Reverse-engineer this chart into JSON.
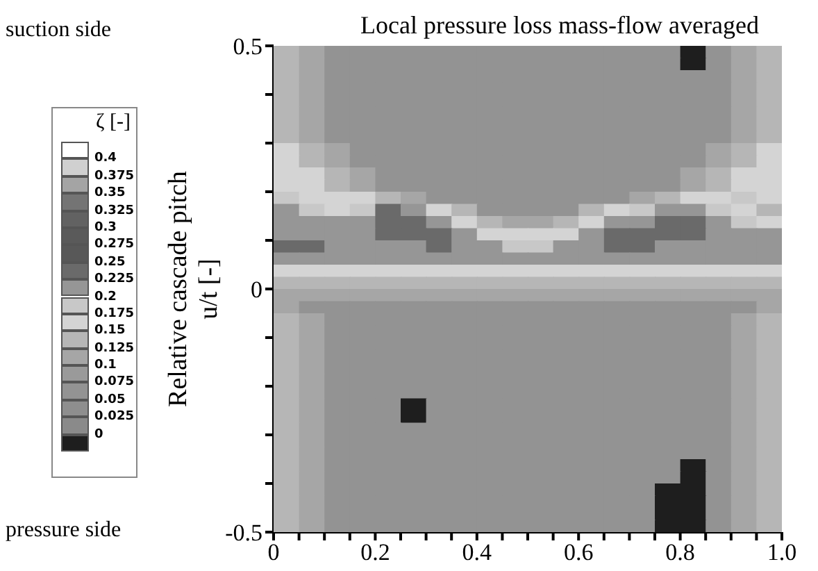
{
  "chart_data": {
    "type": "heatmap",
    "title": "Local pressure loss mass-flow averaged",
    "ylabel": "Relative cascade pitch u/t [-]",
    "clabel": "ζ [-]",
    "annotations": [
      "suction side",
      "pressure side"
    ],
    "xlim": [
      0,
      1
    ],
    "xticks": [
      0,
      {
        "value": 0.05,
        "label": null
      },
      {
        "value": 0.1,
        "label": null
      },
      {
        "value": 0.15,
        "label": null
      },
      0.2,
      {
        "value": 0.25,
        "label": null
      },
      {
        "value": 0.3,
        "label": null
      },
      {
        "value": 0.35,
        "label": null
      },
      0.4,
      {
        "value": 0.45,
        "label": null
      },
      {
        "value": 0.5,
        "label": null
      },
      {
        "value": 0.55,
        "label": null
      },
      0.6,
      {
        "value": 0.65,
        "label": null
      },
      {
        "value": 0.7,
        "label": null
      },
      {
        "value": 0.75,
        "label": null
      },
      0.8,
      {
        "value": 0.85,
        "label": null
      },
      {
        "value": 0.9,
        "label": null
      },
      {
        "value": 0.95,
        "label": null
      },
      {
        "value": 1,
        "label": "1.0"
      }
    ],
    "ylim": [
      -0.5,
      0.5
    ],
    "yticks": [
      -0.5,
      {
        "value": -0.4,
        "label": null
      },
      {
        "value": -0.3,
        "label": null
      },
      {
        "value": -0.2,
        "label": null
      },
      {
        "value": -0.1,
        "label": null
      },
      0,
      {
        "value": 0.1,
        "label": null
      },
      {
        "value": 0.2,
        "label": null
      },
      {
        "value": 0.3,
        "label": null
      },
      {
        "value": 0.4,
        "label": null
      },
      0.5
    ],
    "clim": [
      -0.025,
      0.425
    ],
    "cticks": [
      0,
      0.025,
      0.05,
      0.075,
      0.1,
      0.125,
      0.15,
      0.175,
      0.2,
      0.225,
      0.25,
      0.275,
      0.3,
      0.325,
      0.35,
      0.375,
      0.4
    ],
    "colors": [
      "#1e1e1e",
      "#8a8a8a",
      "#8e8e8e",
      "#939393",
      "#9a9a9a",
      "#a6a6a6",
      "#b6b6b6",
      "#d4d4d4",
      "#c8c8c8",
      "#969696",
      "#6a6a6a",
      "#585858",
      "#5a5a5a",
      "#626262",
      "#747474",
      "#a4a4a4",
      "#d0d0d0",
      "#ffffff"
    ],
    "cells": [
      [
        0.1375,
        0.1125,
        0.0625,
        0.0625,
        0.0625,
        0.0625,
        0.0625,
        0.0625,
        0.0625,
        0.0625,
        0.0625,
        0.0625,
        0.0625,
        0.0625,
        0.0625,
        0.0625,
        -0.0125,
        0.0625,
        0.1125,
        0.1375
      ],
      [
        0.1375,
        0.1125,
        0.0625,
        0.0625,
        0.0625,
        0.0625,
        0.0625,
        0.0625,
        0.0625,
        0.0625,
        0.0625,
        0.0625,
        0.0625,
        0.0625,
        0.0625,
        0.0625,
        -0.0125,
        0.0625,
        0.1125,
        0.1375
      ],
      [
        0.1375,
        0.1125,
        0.0625,
        0.0625,
        0.0625,
        0.0625,
        0.0625,
        0.0625,
        0.0625,
        0.0625,
        0.0625,
        0.0625,
        0.0625,
        0.0625,
        0.0625,
        0.0625,
        0.0625,
        0.0625,
        0.1125,
        0.1375
      ],
      [
        0.1375,
        0.1125,
        0.0625,
        0.0625,
        0.0625,
        0.0625,
        0.0625,
        0.0625,
        0.0625,
        0.0625,
        0.0625,
        0.0625,
        0.0625,
        0.0625,
        0.0625,
        0.0625,
        0.0625,
        0.0625,
        0.1125,
        0.1375
      ],
      [
        0.1375,
        0.1125,
        0.0625,
        0.0625,
        0.0625,
        0.0625,
        0.0625,
        0.0625,
        0.0625,
        0.0625,
        0.0625,
        0.0625,
        0.0625,
        0.0625,
        0.0625,
        0.0625,
        0.0625,
        0.0625,
        0.1125,
        0.1375
      ],
      [
        0.1375,
        0.1125,
        0.0625,
        0.0625,
        0.0625,
        0.0625,
        0.0625,
        0.0625,
        0.0625,
        0.0625,
        0.0625,
        0.0625,
        0.0625,
        0.0625,
        0.0625,
        0.0625,
        0.0625,
        0.0625,
        0.1125,
        0.1375
      ],
      [
        0.1375,
        0.1125,
        0.0625,
        0.0625,
        0.0625,
        0.0625,
        0.0625,
        0.0625,
        0.0625,
        0.0625,
        0.0625,
        0.0625,
        0.0625,
        0.0625,
        0.0625,
        0.0625,
        0.0625,
        0.0625,
        0.1125,
        0.1375
      ],
      [
        0.1375,
        0.1125,
        0.0625,
        0.0625,
        0.0625,
        0.0625,
        0.0625,
        0.0625,
        0.0625,
        0.0625,
        0.0625,
        0.0625,
        0.0625,
        0.0625,
        0.0625,
        0.0625,
        0.0625,
        0.0625,
        0.1125,
        0.1375
      ],
      [
        0.1625,
        0.1375,
        0.1125,
        0.0625,
        0.0625,
        0.0625,
        0.0625,
        0.0625,
        0.0625,
        0.0625,
        0.0625,
        0.0625,
        0.0625,
        0.0625,
        0.0625,
        0.0625,
        0.0625,
        0.1125,
        0.1375,
        0.1625
      ],
      [
        0.1625,
        0.1375,
        0.1125,
        0.0625,
        0.0625,
        0.0625,
        0.0625,
        0.0625,
        0.0625,
        0.0625,
        0.0625,
        0.0625,
        0.0625,
        0.0625,
        0.0625,
        0.0625,
        0.0625,
        0.1125,
        0.1375,
        0.1625
      ],
      [
        0.1625,
        0.1625,
        0.1375,
        0.1125,
        0.0625,
        0.0625,
        0.0625,
        0.0625,
        0.0625,
        0.0625,
        0.0625,
        0.0625,
        0.0625,
        0.0625,
        0.0625,
        0.0625,
        0.1125,
        0.1375,
        0.1625,
        0.1625
      ],
      [
        0.1625,
        0.1625,
        0.1375,
        0.1125,
        0.0625,
        0.0625,
        0.0625,
        0.0625,
        0.0625,
        0.0625,
        0.0625,
        0.0625,
        0.0625,
        0.0625,
        0.0625,
        0.0625,
        0.1125,
        0.1375,
        0.1625,
        0.1625
      ],
      [
        0.1875,
        0.1625,
        0.1625,
        0.1625,
        0.1375,
        0.1125,
        0.0625,
        0.0625,
        0.0625,
        0.0625,
        0.0625,
        0.0625,
        0.0625,
        0.0625,
        0.1125,
        0.1375,
        0.1625,
        0.1625,
        0.1875,
        0.1625
      ],
      [
        0.2125,
        0.1875,
        0.1625,
        0.1875,
        0.2375,
        0.2125,
        0.1625,
        0.1375,
        0.0625,
        0.0625,
        0.0625,
        0.0625,
        0.1375,
        0.1625,
        0.1875,
        0.2125,
        0.2125,
        0.1875,
        0.1625,
        0.1375
      ],
      [
        0.2125,
        0.2125,
        0.2125,
        0.2125,
        0.2375,
        0.2375,
        0.2125,
        0.1625,
        0.1375,
        0.1125,
        0.1125,
        0.1375,
        0.1625,
        0.2125,
        0.2125,
        0.2375,
        0.2375,
        0.2125,
        0.1875,
        0.1625
      ],
      [
        0.2125,
        0.2125,
        0.2125,
        0.2125,
        0.2375,
        0.2375,
        0.2375,
        0.2125,
        0.1625,
        0.1625,
        0.1625,
        0.1625,
        0.2125,
        0.2375,
        0.2375,
        0.2375,
        0.2375,
        0.2125,
        0.2125,
        0.2125
      ],
      [
        0.2375,
        0.2375,
        0.2125,
        0.2125,
        0.2125,
        0.2125,
        0.2375,
        0.2125,
        0.2125,
        0.1875,
        0.1875,
        0.2125,
        0.2125,
        0.2375,
        0.2375,
        0.2125,
        0.2125,
        0.2125,
        0.2125,
        0.2125
      ],
      [
        0.2125,
        0.2125,
        0.2125,
        0.2125,
        0.2125,
        0.2125,
        0.2125,
        0.2125,
        0.2125,
        0.2125,
        0.2125,
        0.2125,
        0.2125,
        0.2125,
        0.2125,
        0.2125,
        0.2125,
        0.2125,
        0.2125,
        0.2125
      ],
      [
        0.1625,
        0.1625,
        0.1625,
        0.1625,
        0.1625,
        0.1625,
        0.1625,
        0.1625,
        0.1625,
        0.1625,
        0.1625,
        0.1625,
        0.1625,
        0.1625,
        0.1625,
        0.1625,
        0.1625,
        0.1625,
        0.1625,
        0.1625
      ],
      [
        0.1375,
        0.1375,
        0.1375,
        0.1375,
        0.1375,
        0.1375,
        0.1375,
        0.1375,
        0.1375,
        0.1375,
        0.1375,
        0.1375,
        0.1375,
        0.1375,
        0.1375,
        0.1375,
        0.1375,
        0.1375,
        0.1375,
        0.1375
      ],
      [
        0.1125,
        0.1125,
        0.1125,
        0.1125,
        0.1125,
        0.1125,
        0.1125,
        0.1125,
        0.1125,
        0.1125,
        0.1125,
        0.1125,
        0.1125,
        0.1125,
        0.1125,
        0.1125,
        0.1125,
        0.1125,
        0.1125,
        0.1125
      ],
      [
        0.1125,
        0.0625,
        0.0625,
        0.0625,
        0.0625,
        0.0625,
        0.0625,
        0.0625,
        0.0625,
        0.0625,
        0.0625,
        0.0625,
        0.0625,
        0.0625,
        0.0625,
        0.0625,
        0.0625,
        0.0625,
        0.0625,
        0.1125
      ],
      [
        0.1375,
        0.1125,
        0.0625,
        0.0625,
        0.0625,
        0.0625,
        0.0625,
        0.0625,
        0.0625,
        0.0625,
        0.0625,
        0.0625,
        0.0625,
        0.0625,
        0.0625,
        0.0625,
        0.0625,
        0.0625,
        0.1125,
        0.1375
      ],
      [
        0.1375,
        0.1125,
        0.0625,
        0.0625,
        0.0625,
        0.0625,
        0.0625,
        0.0625,
        0.0625,
        0.0625,
        0.0625,
        0.0625,
        0.0625,
        0.0625,
        0.0625,
        0.0625,
        0.0625,
        0.0625,
        0.1125,
        0.1375
      ],
      [
        0.1375,
        0.1125,
        0.0625,
        0.0625,
        0.0625,
        0.0625,
        0.0625,
        0.0625,
        0.0625,
        0.0625,
        0.0625,
        0.0625,
        0.0625,
        0.0625,
        0.0625,
        0.0625,
        0.0625,
        0.0625,
        0.1125,
        0.1375
      ],
      [
        0.1375,
        0.1125,
        0.0625,
        0.0625,
        0.0625,
        0.0625,
        0.0625,
        0.0625,
        0.0625,
        0.0625,
        0.0625,
        0.0625,
        0.0625,
        0.0625,
        0.0625,
        0.0625,
        0.0625,
        0.0625,
        0.1125,
        0.1375
      ],
      [
        0.1375,
        0.1125,
        0.0625,
        0.0625,
        0.0625,
        0.0625,
        0.0625,
        0.0625,
        0.0625,
        0.0625,
        0.0625,
        0.0625,
        0.0625,
        0.0625,
        0.0625,
        0.0625,
        0.0625,
        0.0625,
        0.1125,
        0.1375
      ],
      [
        0.1375,
        0.1125,
        0.0625,
        0.0625,
        0.0625,
        0.0625,
        0.0625,
        0.0625,
        0.0625,
        0.0625,
        0.0625,
        0.0625,
        0.0625,
        0.0625,
        0.0625,
        0.0625,
        0.0625,
        0.0625,
        0.1125,
        0.1375
      ],
      [
        0.1375,
        0.1125,
        0.0625,
        0.0625,
        0.0625,
        0.0625,
        0.0625,
        0.0625,
        0.0625,
        0.0625,
        0.0625,
        0.0625,
        0.0625,
        0.0625,
        0.0625,
        0.0625,
        0.0625,
        0.0625,
        0.1125,
        0.1375
      ],
      [
        0.1375,
        0.1125,
        0.0625,
        0.0625,
        0.0625,
        -0.0125,
        0.0625,
        0.0625,
        0.0625,
        0.0625,
        0.0625,
        0.0625,
        0.0625,
        0.0625,
        0.0625,
        0.0625,
        0.0625,
        0.0625,
        0.1125,
        0.1375
      ],
      [
        0.1375,
        0.1125,
        0.0625,
        0.0625,
        0.0625,
        -0.0125,
        0.0625,
        0.0625,
        0.0625,
        0.0625,
        0.0625,
        0.0625,
        0.0625,
        0.0625,
        0.0625,
        0.0625,
        0.0625,
        0.0625,
        0.1125,
        0.1375
      ],
      [
        0.1375,
        0.1125,
        0.0625,
        0.0625,
        0.0625,
        0.0625,
        0.0625,
        0.0625,
        0.0625,
        0.0625,
        0.0625,
        0.0625,
        0.0625,
        0.0625,
        0.0625,
        0.0625,
        0.0625,
        0.0625,
        0.1125,
        0.1375
      ],
      [
        0.1375,
        0.1125,
        0.0625,
        0.0625,
        0.0625,
        0.0625,
        0.0625,
        0.0625,
        0.0625,
        0.0625,
        0.0625,
        0.0625,
        0.0625,
        0.0625,
        0.0625,
        0.0625,
        0.0625,
        0.0625,
        0.1125,
        0.1375
      ],
      [
        0.1375,
        0.1125,
        0.0625,
        0.0625,
        0.0625,
        0.0625,
        0.0625,
        0.0625,
        0.0625,
        0.0625,
        0.0625,
        0.0625,
        0.0625,
        0.0625,
        0.0625,
        0.0625,
        0.0625,
        0.0625,
        0.1125,
        0.1375
      ],
      [
        0.1375,
        0.1125,
        0.0625,
        0.0625,
        0.0625,
        0.0625,
        0.0625,
        0.0625,
        0.0625,
        0.0625,
        0.0625,
        0.0625,
        0.0625,
        0.0625,
        0.0625,
        0.0625,
        -0.0125,
        0.0625,
        0.1125,
        0.1375
      ],
      [
        0.1375,
        0.1125,
        0.0625,
        0.0625,
        0.0625,
        0.0625,
        0.0625,
        0.0625,
        0.0625,
        0.0625,
        0.0625,
        0.0625,
        0.0625,
        0.0625,
        0.0625,
        0.0625,
        -0.0125,
        0.0625,
        0.1125,
        0.1375
      ],
      [
        0.1375,
        0.1125,
        0.0625,
        0.0625,
        0.0625,
        0.0625,
        0.0625,
        0.0625,
        0.0625,
        0.0625,
        0.0625,
        0.0625,
        0.0625,
        0.0625,
        0.0625,
        -0.0125,
        -0.0125,
        0.0625,
        0.1125,
        0.1375
      ],
      [
        0.1375,
        0.1125,
        0.0625,
        0.0625,
        0.0625,
        0.0625,
        0.0625,
        0.0625,
        0.0625,
        0.0625,
        0.0625,
        0.0625,
        0.0625,
        0.0625,
        0.0625,
        -0.0125,
        -0.0125,
        0.0625,
        0.1125,
        0.1375
      ],
      [
        0.1375,
        0.1125,
        0.0625,
        0.0625,
        0.0625,
        0.0625,
        0.0625,
        0.0625,
        0.0625,
        0.0625,
        0.0625,
        0.0625,
        0.0625,
        0.0625,
        0.0625,
        -0.0125,
        -0.0125,
        0.0625,
        0.1125,
        0.1375
      ],
      [
        0.1375,
        0.1125,
        0.0625,
        0.0625,
        0.0625,
        0.0625,
        0.0625,
        0.0625,
        0.0625,
        0.0625,
        0.0625,
        0.0625,
        0.0625,
        0.0625,
        0.0625,
        -0.0125,
        -0.0125,
        0.0625,
        0.1125,
        0.1375
      ]
    ]
  }
}
